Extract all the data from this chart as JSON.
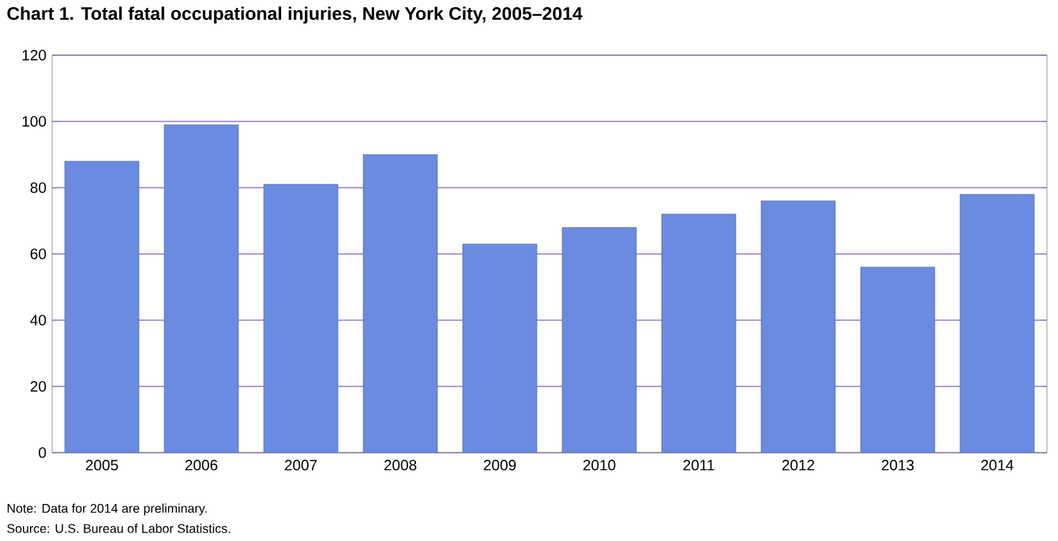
{
  "chart_data": {
    "type": "bar",
    "title": "Chart 1. Total fatal occupational injuries, New York City, 2005–2014",
    "categories": [
      "2005",
      "2006",
      "2007",
      "2008",
      "2009",
      "2010",
      "2011",
      "2012",
      "2013",
      "2014"
    ],
    "values": [
      88,
      99,
      81,
      90,
      63,
      68,
      72,
      76,
      56,
      78
    ],
    "color": "#6a8be0",
    "ylim": [
      0,
      120
    ],
    "yticks": [
      0,
      20,
      40,
      60,
      80,
      100,
      120
    ],
    "grid": "y",
    "annotations": [
      "Note: Data for 2014 are preliminary.",
      "Source: U.S. Bureau of Labor Statistics."
    ]
  }
}
